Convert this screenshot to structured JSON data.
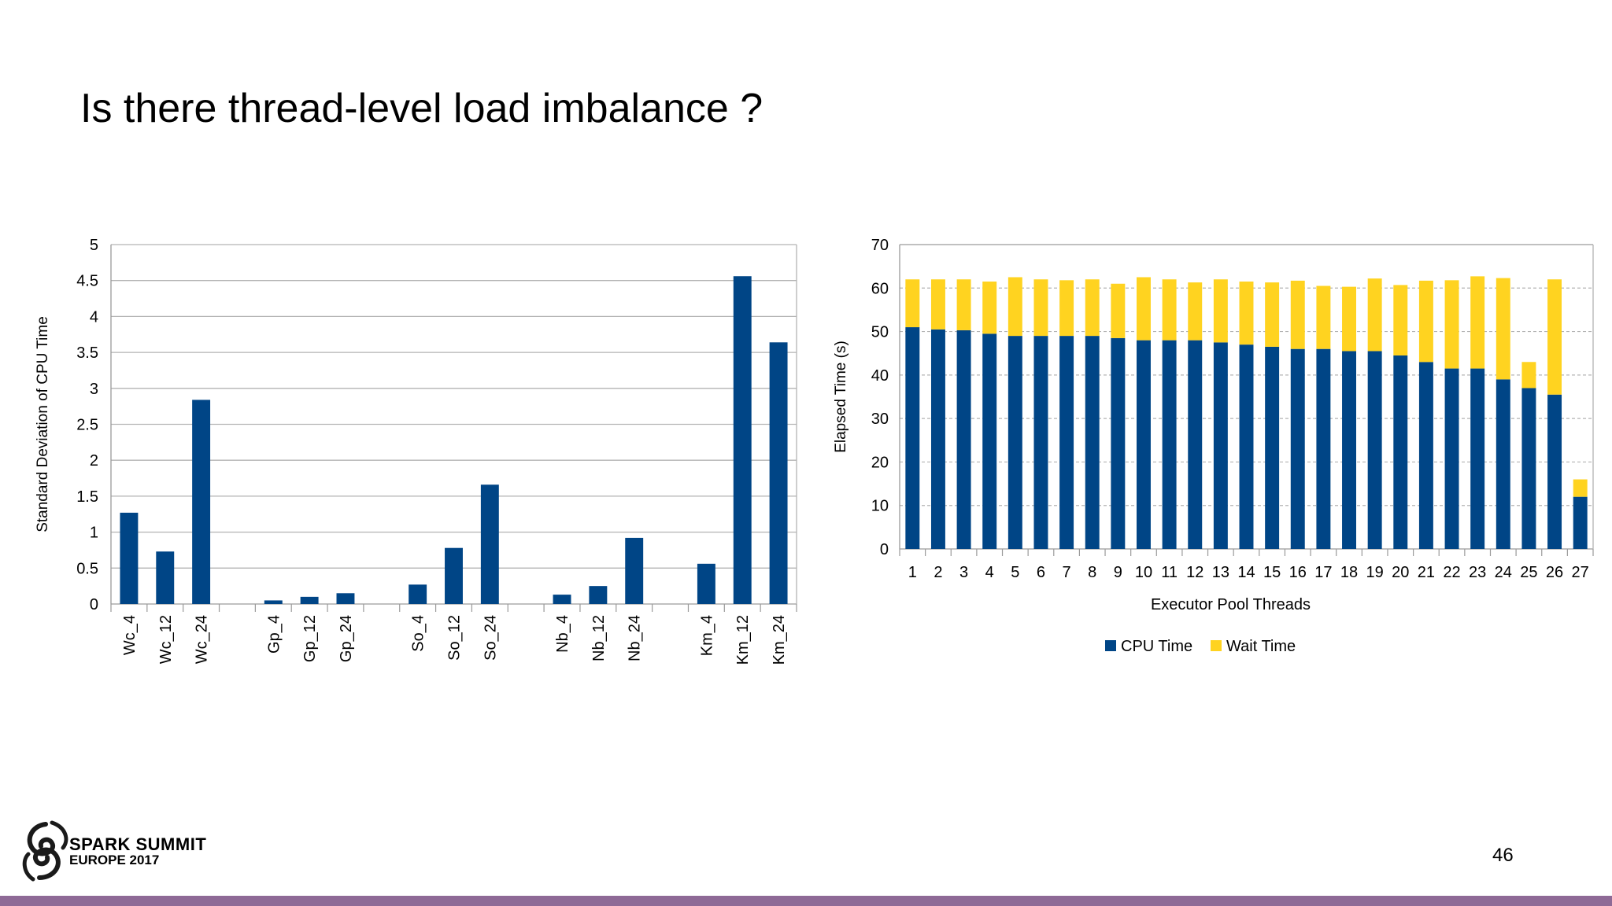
{
  "slide": {
    "title": "Is there thread-level load imbalance ?",
    "page_number": "46",
    "logo_line1": "SPARK SUMMIT",
    "logo_line2": "EUROPE 2017",
    "accent_color": "#8e6a96"
  },
  "chart_data": [
    {
      "type": "bar",
      "title": "",
      "xlabel": "",
      "ylabel": "Standard Deviation of CPU Time",
      "ylim": [
        0,
        5
      ],
      "yticks": [
        "0",
        "0.5",
        "1",
        "1.5",
        "2",
        "2.5",
        "3",
        "3.5",
        "4",
        "4.5",
        "5"
      ],
      "color": "#004586",
      "categories": [
        "Wc_4",
        "Wc_12",
        "Wc_24",
        "",
        "Gp_4",
        "Gp_12",
        "Gp_24",
        "",
        "So_4",
        "So_12",
        "So_24",
        "",
        "Nb_4",
        "Nb_12",
        "Nb_24",
        "",
        "Km_4",
        "Km_12",
        "Km_24"
      ],
      "values": [
        1.27,
        0.73,
        2.84,
        null,
        0.05,
        0.1,
        0.15,
        null,
        0.27,
        0.78,
        1.66,
        null,
        0.13,
        0.25,
        0.92,
        null,
        0.56,
        4.56,
        3.64
      ]
    },
    {
      "type": "bar",
      "stacked": true,
      "title": "",
      "xlabel": "Executor Pool Threads",
      "ylabel": "Elapsed Time (s)",
      "ylim": [
        0,
        70
      ],
      "yticks": [
        "0",
        "10",
        "20",
        "30",
        "40",
        "50",
        "60",
        "70"
      ],
      "categories": [
        "1",
        "2",
        "3",
        "4",
        "5",
        "6",
        "7",
        "8",
        "9",
        "10",
        "11",
        "12",
        "13",
        "14",
        "15",
        "16",
        "17",
        "18",
        "19",
        "20",
        "21",
        "22",
        "23",
        "24",
        "25",
        "26",
        "27"
      ],
      "series": [
        {
          "name": "CPU Time",
          "color": "#004586",
          "values": [
            51,
            50.5,
            50.3,
            49.5,
            49,
            49,
            49,
            49,
            48.5,
            48,
            48,
            48,
            47.5,
            47,
            46.5,
            46,
            46,
            45.5,
            45.5,
            44.5,
            43,
            41.5,
            41.5,
            39,
            37,
            35.5,
            12
          ]
        },
        {
          "name": "Wait Time",
          "color": "#ffd320",
          "values": [
            11,
            11.5,
            11.7,
            12,
            13.5,
            13,
            12.8,
            13,
            12.5,
            14.5,
            14,
            13.3,
            14.5,
            14.5,
            14.8,
            15.7,
            14.5,
            14.8,
            16.7,
            16.2,
            18.7,
            20.3,
            21.2,
            23.3,
            6,
            26.5,
            4
          ]
        }
      ],
      "legend": [
        "CPU Time",
        "Wait Time"
      ],
      "legend_position": "bottom"
    }
  ]
}
